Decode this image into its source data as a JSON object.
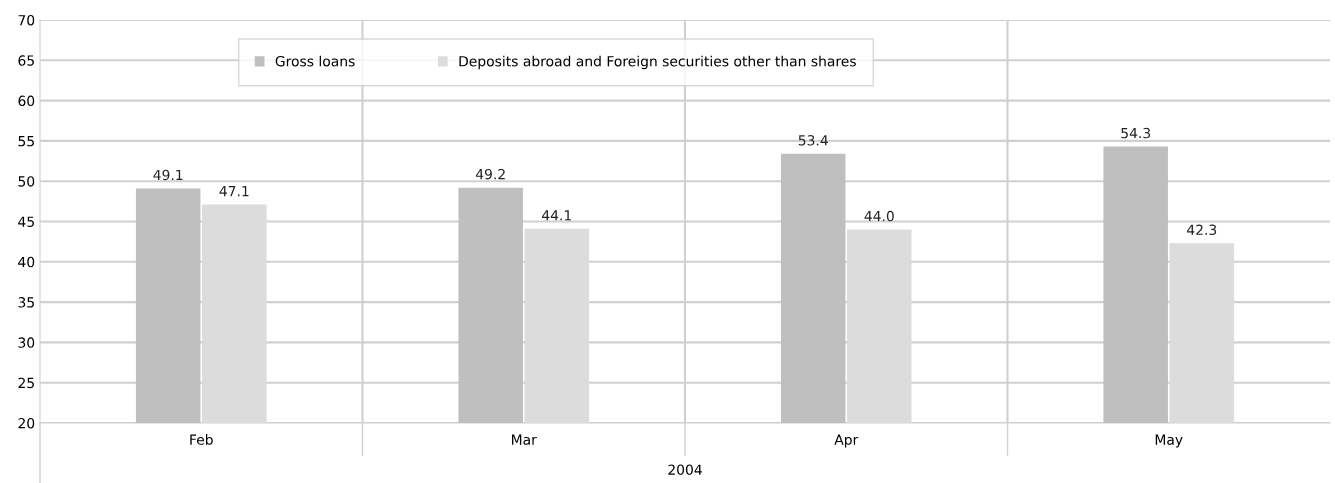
{
  "chart_data": {
    "type": "bar",
    "categories": [
      "Feb",
      "Mar",
      "Apr",
      "May"
    ],
    "xlabel": "2004",
    "series": [
      {
        "name": "Gross loans",
        "color": "#bfbfbf",
        "values": [
          49.1,
          49.2,
          53.4,
          54.3
        ],
        "value_labels": [
          "49.1",
          "49.2",
          "53.4",
          "54.3"
        ]
      },
      {
        "name": "Deposits abroad and Foreign securities other than shares",
        "color": "#dcdcdc",
        "values": [
          47.1,
          44.1,
          44.0,
          42.3
        ],
        "value_labels": [
          "47.1",
          "44.1",
          "44.0",
          "42.3"
        ]
      }
    ],
    "ylim": [
      20,
      70
    ],
    "yticks": [
      20,
      25,
      30,
      35,
      40,
      45,
      50,
      55,
      60,
      65,
      70
    ],
    "grid": true,
    "legend": "top"
  }
}
